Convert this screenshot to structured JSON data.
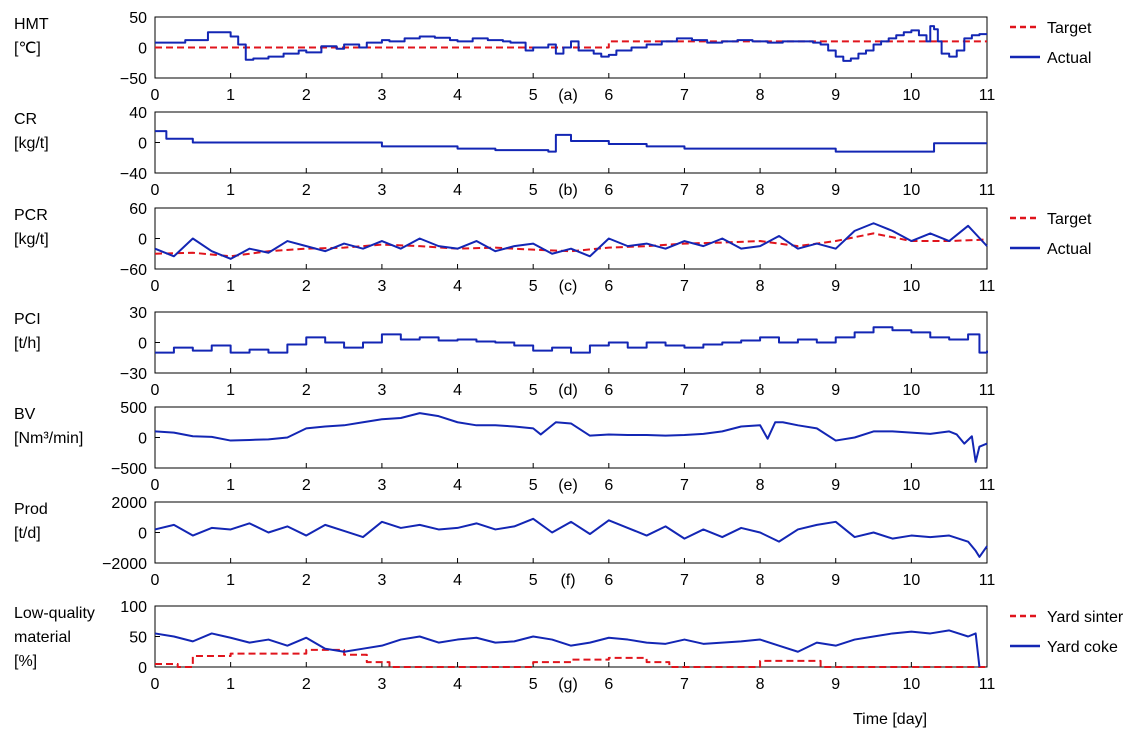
{
  "figure": {
    "xlabel": "Time [day]",
    "colors": {
      "target": "#e0141c",
      "actual": "#1326b4",
      "frame": "#000000",
      "grid": "#d9d9d9"
    }
  },
  "chart_data": [
    {
      "type": "line",
      "panel": "(a)",
      "ylabel": [
        "HMT",
        "[℃]"
      ],
      "ylim": [
        -50,
        50
      ],
      "yticks": [
        "50",
        "0",
        "−50"
      ],
      "yticks_values": [
        50,
        0,
        -50
      ],
      "xticks": [
        "0",
        "1",
        "2",
        "3",
        "4",
        "5",
        "6",
        "7",
        "8",
        "9",
        "10",
        "11"
      ],
      "xlim": [
        0,
        11
      ],
      "legend": [
        "Target",
        "Actual"
      ],
      "series": [
        {
          "name": "Target",
          "style": "dashed",
          "color": "#e0141c",
          "step": true,
          "x": [
            0,
            6.0,
            6.0,
            11
          ],
          "y": [
            0,
            0,
            10,
            10
          ]
        },
        {
          "name": "Actual",
          "style": "solid",
          "color": "#1326b4",
          "step": true,
          "x": [
            0,
            0.2,
            0.4,
            0.5,
            0.7,
            0.9,
            1.0,
            1.1,
            1.2,
            1.3,
            1.5,
            1.7,
            1.9,
            2.0,
            2.2,
            2.4,
            2.5,
            2.7,
            2.8,
            3.0,
            3.1,
            3.3,
            3.5,
            3.7,
            3.9,
            4.0,
            4.2,
            4.4,
            4.6,
            4.7,
            4.9,
            5.0,
            5.2,
            5.3,
            5.4,
            5.5,
            5.6,
            5.8,
            5.9,
            6.0,
            6.1,
            6.3,
            6.5,
            6.7,
            6.9,
            7.1,
            7.3,
            7.5,
            7.7,
            7.9,
            8.1,
            8.3,
            8.5,
            8.7,
            8.8,
            8.9,
            9.0,
            9.1,
            9.2,
            9.3,
            9.4,
            9.5,
            9.6,
            9.7,
            9.8,
            9.9,
            10.0,
            10.1,
            10.2,
            10.25,
            10.3,
            10.35,
            10.4,
            10.5,
            10.6,
            10.7,
            10.8,
            10.9,
            11.0
          ],
          "y": [
            8,
            8,
            12,
            12,
            25,
            25,
            18,
            5,
            -20,
            -18,
            -15,
            -10,
            -5,
            -8,
            2,
            -2,
            5,
            0,
            8,
            12,
            10,
            15,
            18,
            16,
            12,
            10,
            15,
            12,
            10,
            8,
            -5,
            0,
            5,
            -10,
            0,
            10,
            -5,
            -10,
            -15,
            -12,
            -5,
            0,
            5,
            10,
            15,
            12,
            8,
            10,
            12,
            10,
            8,
            10,
            10,
            8,
            5,
            -5,
            -15,
            -22,
            -18,
            -10,
            -5,
            5,
            10,
            15,
            20,
            25,
            28,
            20,
            10,
            35,
            30,
            10,
            -10,
            -15,
            -5,
            15,
            20,
            22,
            22
          ]
        }
      ]
    },
    {
      "type": "line",
      "panel": "(b)",
      "ylabel": [
        "CR",
        "[kg/t]"
      ],
      "ylim": [
        -40,
        40
      ],
      "yticks": [
        "40",
        "0",
        "−40"
      ],
      "yticks_values": [
        40,
        0,
        -40
      ],
      "xticks": [
        "0",
        "1",
        "2",
        "3",
        "4",
        "5",
        "6",
        "7",
        "8",
        "9",
        "10",
        "11"
      ],
      "xlim": [
        0,
        11
      ],
      "series": [
        {
          "name": "",
          "style": "solid",
          "color": "#1326b4",
          "step": true,
          "x": [
            0,
            0.15,
            0.15,
            0.5,
            0.5,
            3.0,
            3.0,
            4.0,
            4.0,
            4.5,
            4.5,
            5.2,
            5.2,
            5.3,
            5.3,
            5.5,
            5.5,
            6.0,
            6.0,
            6.5,
            6.5,
            7.0,
            7.0,
            9.0,
            9.0,
            10.3,
            10.3,
            11.0
          ],
          "y": [
            15,
            15,
            5,
            5,
            0,
            0,
            -5,
            -5,
            -8,
            -8,
            -10,
            -10,
            -12,
            -12,
            10,
            10,
            2,
            2,
            -2,
            -2,
            -5,
            -5,
            -8,
            -8,
            -12,
            -12,
            -1,
            -1
          ]
        }
      ]
    },
    {
      "type": "line",
      "panel": "(c)",
      "ylabel": [
        "PCR",
        "[kg/t]"
      ],
      "ylim": [
        -60,
        60
      ],
      "yticks": [
        "60",
        "0",
        "−60"
      ],
      "yticks_values": [
        60,
        0,
        -60
      ],
      "xticks": [
        "0",
        "1",
        "2",
        "3",
        "4",
        "5",
        "6",
        "7",
        "8",
        "9",
        "10",
        "11"
      ],
      "xlim": [
        0,
        11
      ],
      "legend": [
        "Target",
        "Actual"
      ],
      "series": [
        {
          "name": "Target",
          "style": "dashed",
          "color": "#e0141c",
          "x": [
            0,
            0.5,
            1,
            1.5,
            2,
            2.5,
            3,
            3.5,
            4,
            4.5,
            5,
            5.5,
            6,
            6.5,
            7,
            7.5,
            8,
            8.5,
            9,
            9.5,
            10,
            10.5,
            11
          ],
          "y": [
            -30,
            -28,
            -35,
            -25,
            -20,
            -18,
            -12,
            -15,
            -20,
            -18,
            -22,
            -25,
            -18,
            -15,
            -10,
            -8,
            -5,
            -15,
            -5,
            10,
            -5,
            -5,
            -2
          ]
        },
        {
          "name": "Actual",
          "style": "solid",
          "color": "#1326b4",
          "x": [
            0,
            0.25,
            0.5,
            0.75,
            1,
            1.25,
            1.5,
            1.75,
            2,
            2.25,
            2.5,
            2.75,
            3,
            3.25,
            3.5,
            3.75,
            4,
            4.25,
            4.5,
            4.75,
            5,
            5.25,
            5.5,
            5.75,
            6,
            6.25,
            6.5,
            6.75,
            7,
            7.25,
            7.5,
            7.75,
            8,
            8.25,
            8.5,
            8.75,
            9,
            9.25,
            9.5,
            9.75,
            10,
            10.25,
            10.5,
            10.75,
            11
          ],
          "y": [
            -20,
            -35,
            0,
            -25,
            -40,
            -20,
            -28,
            -5,
            -15,
            -25,
            -10,
            -20,
            -5,
            -20,
            0,
            -15,
            -20,
            -5,
            -25,
            -15,
            -10,
            -30,
            -20,
            -35,
            0,
            -15,
            -10,
            -20,
            -5,
            -15,
            0,
            -20,
            -15,
            5,
            -20,
            -10,
            -20,
            15,
            30,
            15,
            -5,
            10,
            -5,
            25,
            -15
          ]
        }
      ]
    },
    {
      "type": "line",
      "panel": "(d)",
      "ylabel": [
        "PCI",
        "[t/h]"
      ],
      "ylim": [
        -30,
        30
      ],
      "yticks": [
        "30",
        "0",
        "−30"
      ],
      "yticks_values": [
        30,
        0,
        -30
      ],
      "xticks": [
        "0",
        "1",
        "2",
        "3",
        "4",
        "5",
        "6",
        "7",
        "8",
        "9",
        "10",
        "11"
      ],
      "xlim": [
        0,
        11
      ],
      "series": [
        {
          "name": "",
          "style": "solid",
          "color": "#1326b4",
          "step": true,
          "x": [
            0,
            0.25,
            0.5,
            0.75,
            1,
            1.25,
            1.5,
            1.75,
            2,
            2.25,
            2.5,
            2.75,
            3,
            3.25,
            3.5,
            3.75,
            4,
            4.25,
            4.5,
            4.75,
            5,
            5.25,
            5.5,
            5.75,
            6,
            6.25,
            6.5,
            6.75,
            7,
            7.25,
            7.5,
            7.75,
            8,
            8.25,
            8.5,
            8.75,
            9,
            9.25,
            9.5,
            9.75,
            10,
            10.25,
            10.5,
            10.75,
            10.9,
            11
          ],
          "y": [
            -10,
            -5,
            -8,
            -3,
            -10,
            -7,
            -10,
            -2,
            5,
            0,
            -5,
            0,
            8,
            3,
            5,
            2,
            3,
            1,
            0,
            -3,
            -8,
            -5,
            -10,
            -3,
            0,
            -5,
            0,
            -3,
            -5,
            -2,
            0,
            2,
            5,
            0,
            3,
            0,
            5,
            10,
            15,
            12,
            10,
            5,
            3,
            8,
            -10,
            -8
          ]
        }
      ]
    },
    {
      "type": "line",
      "panel": "(e)",
      "ylabel": [
        "BV",
        "[Nm³/min]"
      ],
      "ylim": [
        -500,
        500
      ],
      "yticks": [
        "500",
        "0",
        "−500"
      ],
      "yticks_values": [
        500,
        0,
        -500
      ],
      "xticks": [
        "0",
        "1",
        "2",
        "3",
        "4",
        "5",
        "6",
        "7",
        "8",
        "9",
        "10",
        "11"
      ],
      "xlim": [
        0,
        11
      ],
      "series": [
        {
          "name": "",
          "style": "solid",
          "color": "#1326b4",
          "x": [
            0,
            0.25,
            0.5,
            0.75,
            1,
            1.25,
            1.5,
            1.75,
            2,
            2.25,
            2.5,
            2.75,
            3,
            3.25,
            3.5,
            3.75,
            4,
            4.25,
            4.5,
            4.75,
            5,
            5.1,
            5.2,
            5.3,
            5.5,
            5.75,
            6,
            6.25,
            6.5,
            6.75,
            7,
            7.25,
            7.5,
            7.75,
            8,
            8.1,
            8.2,
            8.3,
            8.5,
            8.75,
            9,
            9.25,
            9.5,
            9.75,
            10,
            10.25,
            10.5,
            10.6,
            10.7,
            10.8,
            10.85,
            10.9,
            11
          ],
          "y": [
            100,
            80,
            20,
            10,
            -50,
            -40,
            -30,
            0,
            150,
            180,
            200,
            250,
            300,
            320,
            400,
            350,
            250,
            200,
            200,
            180,
            150,
            50,
            150,
            250,
            230,
            30,
            50,
            40,
            40,
            30,
            40,
            60,
            100,
            180,
            200,
            -20,
            250,
            250,
            200,
            150,
            -50,
            0,
            100,
            100,
            80,
            60,
            100,
            50,
            -100,
            20,
            -400,
            -150,
            -100
          ]
        }
      ]
    },
    {
      "type": "line",
      "panel": "(f)",
      "ylabel": [
        "Prod",
        "[t/d]"
      ],
      "ylim": [
        -2000,
        2000
      ],
      "yticks": [
        "2000",
        "0",
        "−2000"
      ],
      "yticks_values": [
        2000,
        0,
        -2000
      ],
      "xticks": [
        "0",
        "1",
        "2",
        "3",
        "4",
        "5",
        "6",
        "7",
        "8",
        "9",
        "10",
        "11"
      ],
      "xlim": [
        0,
        11
      ],
      "series": [
        {
          "name": "",
          "style": "solid",
          "color": "#1326b4",
          "x": [
            0,
            0.25,
            0.5,
            0.75,
            1,
            1.25,
            1.5,
            1.75,
            2,
            2.25,
            2.5,
            2.75,
            3,
            3.25,
            3.5,
            3.75,
            4,
            4.25,
            4.5,
            4.75,
            5,
            5.25,
            5.5,
            5.75,
            6,
            6.25,
            6.5,
            6.75,
            7,
            7.25,
            7.5,
            7.75,
            8,
            8.25,
            8.5,
            8.75,
            9,
            9.25,
            9.5,
            9.75,
            10,
            10.25,
            10.5,
            10.75,
            10.85,
            10.9,
            11
          ],
          "y": [
            200,
            500,
            -200,
            300,
            200,
            600,
            0,
            400,
            -200,
            500,
            100,
            -300,
            700,
            300,
            500,
            200,
            300,
            600,
            200,
            400,
            900,
            0,
            700,
            -100,
            800,
            300,
            -200,
            400,
            -400,
            200,
            -300,
            300,
            0,
            -600,
            200,
            500,
            700,
            -300,
            0,
            -400,
            -200,
            -300,
            -200,
            -600,
            -1200,
            -1600,
            -900
          ]
        }
      ]
    },
    {
      "type": "line",
      "panel": "(g)",
      "ylabel": [
        "Low-quality",
        "material",
        "[%]"
      ],
      "ylim": [
        0,
        100
      ],
      "yticks": [
        "100",
        "50",
        "0"
      ],
      "yticks_values": [
        100,
        50,
        0
      ],
      "xticks": [
        "0",
        "1",
        "2",
        "3",
        "4",
        "5",
        "6",
        "7",
        "8",
        "9",
        "10",
        "11"
      ],
      "xlim": [
        0,
        11
      ],
      "legend": [
        "Yard sinter",
        "Yard coke"
      ],
      "series": [
        {
          "name": "Yard sinter",
          "style": "dashed",
          "color": "#e0141c",
          "step": true,
          "x": [
            0,
            0.3,
            0.3,
            0.5,
            0.5,
            1.0,
            1.0,
            2.0,
            2.0,
            2.5,
            2.5,
            2.8,
            2.8,
            3.1,
            3.1,
            5.0,
            5.0,
            5.5,
            5.5,
            6.0,
            6.0,
            6.5,
            6.5,
            6.8,
            6.8,
            7.5,
            7.5,
            8.0,
            8.0,
            8.8,
            8.8,
            11.0
          ],
          "y": [
            5,
            5,
            0,
            0,
            18,
            18,
            22,
            22,
            28,
            28,
            20,
            20,
            8,
            8,
            0,
            0,
            8,
            8,
            12,
            12,
            15,
            15,
            8,
            8,
            0,
            0,
            0,
            0,
            10,
            10,
            0,
            0
          ]
        },
        {
          "name": "Yard coke",
          "style": "solid",
          "color": "#1326b4",
          "x": [
            0,
            0.25,
            0.5,
            0.75,
            1,
            1.25,
            1.5,
            1.75,
            2,
            2.25,
            2.5,
            2.75,
            3,
            3.25,
            3.5,
            3.75,
            4,
            4.25,
            4.5,
            4.75,
            5,
            5.25,
            5.5,
            5.75,
            6,
            6.25,
            6.5,
            6.75,
            7,
            7.25,
            7.5,
            7.75,
            8,
            8.25,
            8.5,
            8.75,
            9,
            9.25,
            9.5,
            9.75,
            10,
            10.25,
            10.5,
            10.75,
            10.85,
            10.9
          ],
          "y": [
            55,
            50,
            42,
            55,
            48,
            40,
            45,
            35,
            48,
            30,
            25,
            30,
            35,
            45,
            50,
            40,
            45,
            48,
            40,
            42,
            50,
            45,
            35,
            40,
            48,
            45,
            40,
            38,
            45,
            38,
            40,
            42,
            45,
            35,
            25,
            40,
            35,
            45,
            50,
            55,
            58,
            55,
            60,
            50,
            55,
            0
          ]
        }
      ]
    }
  ]
}
